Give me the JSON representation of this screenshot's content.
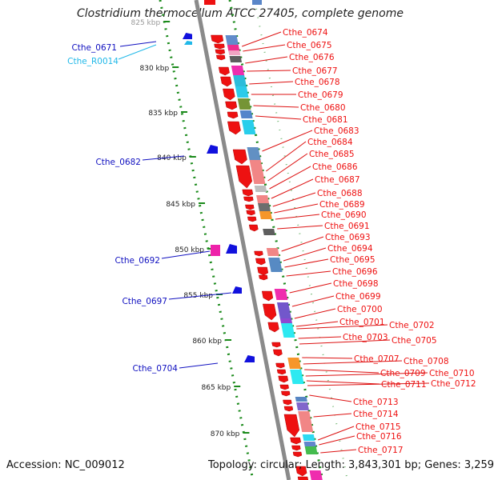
{
  "title": "Clostridium thermocellum ATCC 27405, complete genome",
  "footer": {
    "accession": "Accession: NC_009012",
    "summary": "Topology: circular; Length: 3,843,301 bp; Genes: 3,259"
  },
  "ticks": [
    {
      "label": "825 kbp"
    },
    {
      "label": "830 kbp"
    },
    {
      "label": "835 kbp"
    },
    {
      "label": "840 kbp"
    },
    {
      "label": "845 kbp"
    },
    {
      "label": "850 kbp"
    },
    {
      "label": "855 kbp"
    },
    {
      "label": "860 kbp"
    },
    {
      "label": "865 kbp"
    },
    {
      "label": "870 kbp"
    }
  ],
  "left_labels": [
    {
      "text": "Cthe_0671",
      "color": "#1010c0"
    },
    {
      "text": "Cthe_R0014",
      "color": "#20b8e8"
    },
    {
      "text": "Cthe_0682",
      "color": "#1010c0"
    },
    {
      "text": "Cthe_0692",
      "color": "#1010c0"
    },
    {
      "text": "Cthe_0697",
      "color": "#1010c0"
    },
    {
      "text": "Cthe_0704",
      "color": "#1010c0"
    }
  ],
  "right_labels": [
    {
      "text": "Cthe_0674"
    },
    {
      "text": "Cthe_0675"
    },
    {
      "text": "Cthe_0676"
    },
    {
      "text": "Cthe_0677"
    },
    {
      "text": "Cthe_0678"
    },
    {
      "text": "Cthe_0679"
    },
    {
      "text": "Cthe_0680"
    },
    {
      "text": "Cthe_0681"
    },
    {
      "text": "Cthe_0683"
    },
    {
      "text": "Cthe_0684"
    },
    {
      "text": "Cthe_0685"
    },
    {
      "text": "Cthe_0686"
    },
    {
      "text": "Cthe_0687"
    },
    {
      "text": "Cthe_0688"
    },
    {
      "text": "Cthe_0689"
    },
    {
      "text": "Cthe_0690"
    },
    {
      "text": "Cthe_0691"
    },
    {
      "text": "Cthe_0693"
    },
    {
      "text": "Cthe_0694"
    },
    {
      "text": "Cthe_0695"
    },
    {
      "text": "Cthe_0696"
    },
    {
      "text": "Cthe_0698"
    },
    {
      "text": "Cthe_0699"
    },
    {
      "text": "Cthe_0700"
    },
    {
      "text": "Cthe_0701"
    },
    {
      "text": "Cthe_0702"
    },
    {
      "text": "Cthe_0703"
    },
    {
      "text": "Cthe_0705"
    },
    {
      "text": "Cthe_0707"
    },
    {
      "text": "Cthe_0708"
    },
    {
      "text": "Cthe_0709"
    },
    {
      "text": "Cthe_0710"
    },
    {
      "text": "Cthe_0711"
    },
    {
      "text": "Cthe_0712"
    },
    {
      "text": "Cthe_0713"
    },
    {
      "text": "Cthe_0714"
    },
    {
      "text": "Cthe_0715"
    },
    {
      "text": "Cthe_0716"
    },
    {
      "text": "Cthe_0717"
    }
  ],
  "colors": {
    "forward_gene": "#ee1111",
    "reverse_gene": "#1111dd",
    "backbone": "#8a8a8a",
    "dotted_track": "#1a8a1a",
    "label_line_right": "#dd1111"
  }
}
